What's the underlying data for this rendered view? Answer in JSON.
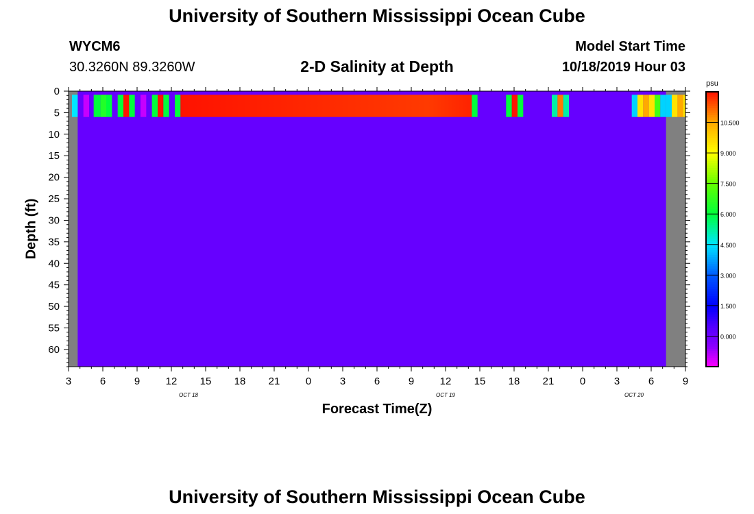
{
  "header": {
    "title_top": "University of Southern Mississippi Ocean Cube",
    "title_bottom": "University of Southern Mississippi Ocean Cube",
    "station_id": "WYCM6",
    "station_coords": "30.3260N 89.3260W",
    "plot_title": "2-D Salinity at Depth",
    "model_start_label": "Model Start Time",
    "model_start_value": "10/18/2019 Hour 03"
  },
  "colors": {
    "background_water": "#6600ff",
    "no_data": "#808080",
    "surface_high": "#ff1a00"
  },
  "chart_data": {
    "type": "heatmap",
    "title": "2-D Salinity at Depth",
    "xlabel": "Forecast Time(Z)",
    "ylabel": "Depth (ft)",
    "x_hours_range": [
      0,
      54
    ],
    "y_depth_range": [
      0,
      64
    ],
    "x_ticks": [
      {
        "hour": 0,
        "label": "3"
      },
      {
        "hour": 3,
        "label": "6"
      },
      {
        "hour": 6,
        "label": "9"
      },
      {
        "hour": 9,
        "label": "12"
      },
      {
        "hour": 12,
        "label": "15"
      },
      {
        "hour": 15,
        "label": "18"
      },
      {
        "hour": 18,
        "label": "21"
      },
      {
        "hour": 21,
        "label": "0"
      },
      {
        "hour": 24,
        "label": "3"
      },
      {
        "hour": 27,
        "label": "6"
      },
      {
        "hour": 30,
        "label": "9"
      },
      {
        "hour": 33,
        "label": "12"
      },
      {
        "hour": 36,
        "label": "15"
      },
      {
        "hour": 39,
        "label": "18"
      },
      {
        "hour": 42,
        "label": "21"
      },
      {
        "hour": 45,
        "label": "0"
      },
      {
        "hour": 48,
        "label": "3"
      },
      {
        "hour": 51,
        "label": "6"
      },
      {
        "hour": 54,
        "label": "9"
      }
    ],
    "date_labels": [
      {
        "hour": 10.5,
        "label": "OCT 18"
      },
      {
        "hour": 33,
        "label": "OCT 19"
      },
      {
        "hour": 49.5,
        "label": "OCT 20"
      }
    ],
    "y_ticks": [
      0,
      5,
      10,
      15,
      20,
      25,
      30,
      35,
      40,
      45,
      50,
      55,
      60
    ],
    "no_data_ranges_hours": [
      [
        0,
        0.8
      ],
      [
        52.3,
        54
      ]
    ],
    "background_value": -0.3,
    "surface_layer_depth": [
      1,
      6
    ],
    "surface_cells": [
      {
        "h0": 0.3,
        "h1": 0.8,
        "value": 4.5
      },
      {
        "h0": 1.3,
        "h1": 1.8,
        "value": -1.0
      },
      {
        "h0": 2.2,
        "h1": 2.8,
        "value": 6.0
      },
      {
        "h0": 2.8,
        "h1": 3.3,
        "value": 6.5
      },
      {
        "h0": 3.3,
        "h1": 3.8,
        "value": 6.0
      },
      {
        "h0": 4.3,
        "h1": 4.8,
        "value": 6.0
      },
      {
        "h0": 4.8,
        "h1": 5.3,
        "value": 12.0
      },
      {
        "h0": 5.3,
        "h1": 5.8,
        "value": 6.0
      },
      {
        "h0": 6.3,
        "h1": 6.8,
        "value": -1.0
      },
      {
        "h0": 7.3,
        "h1": 7.8,
        "value": 6.0
      },
      {
        "h0": 7.8,
        "h1": 8.3,
        "value": 12.0
      },
      {
        "h0": 8.3,
        "h1": 8.8,
        "value": 6.0
      },
      {
        "h0": 9.3,
        "h1": 9.8,
        "value": 6.0
      },
      {
        "h0": 9.8,
        "h1": 35.3,
        "value": 12.0
      },
      {
        "h0": 35.3,
        "h1": 35.8,
        "value": 6.0
      },
      {
        "h0": 38.3,
        "h1": 38.8,
        "value": 6.0
      },
      {
        "h0": 38.8,
        "h1": 39.3,
        "value": 12.0
      },
      {
        "h0": 39.3,
        "h1": 39.8,
        "value": 6.0
      },
      {
        "h0": 42.3,
        "h1": 42.8,
        "value": 5.2
      },
      {
        "h0": 42.8,
        "h1": 43.3,
        "value": 11.0
      },
      {
        "h0": 43.3,
        "h1": 43.8,
        "value": 5.2
      },
      {
        "h0": 49.3,
        "h1": 49.8,
        "value": 4.3
      },
      {
        "h0": 49.8,
        "h1": 50.3,
        "value": 9.5
      },
      {
        "h0": 50.3,
        "h1": 50.8,
        "value": 10.5
      },
      {
        "h0": 50.8,
        "h1": 51.3,
        "value": 9.5
      },
      {
        "h0": 51.3,
        "h1": 51.8,
        "value": 7.0
      },
      {
        "h0": 51.8,
        "h1": 52.3,
        "value": 4.3
      },
      {
        "h0": 52.3,
        "h1": 52.8,
        "value": 4.3
      },
      {
        "h0": 52.8,
        "h1": 53.3,
        "value": 9.5
      },
      {
        "h0": 53.3,
        "h1": 53.8,
        "value": 10.5
      },
      {
        "h0": 53.8,
        "h1": 54.0,
        "value": 9.5
      }
    ],
    "colorbar": {
      "unit": "psu",
      "vmin": -1.5,
      "vmax": 12.0,
      "tick_values": [
        0,
        1.5,
        3.0,
        4.5,
        6.0,
        7.5,
        9.0,
        10.5
      ],
      "tick_labels": [
        "0.000",
        "1.500",
        "3.000",
        "4.500",
        "6.000",
        "7.500",
        "9.000",
        "10.500"
      ]
    }
  }
}
